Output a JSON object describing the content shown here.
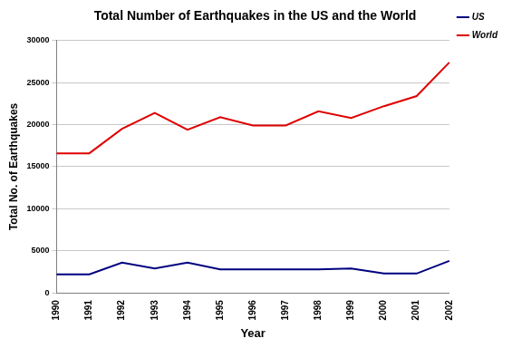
{
  "chart_data": {
    "type": "line",
    "title": "Total Number of Earthquakes in the US and the World",
    "x_label": "Year",
    "y_label": "Total No. of Earthquakes",
    "categories": [
      "1990",
      "1991",
      "1992",
      "1993",
      "1994",
      "1995",
      "1996",
      "1997",
      "1998",
      "1999",
      "2000",
      "2001",
      "2002"
    ],
    "series": [
      {
        "name": "US",
        "color": "#000080",
        "values": [
          2200,
          2200,
          3600,
          2900,
          3600,
          2800,
          2800,
          2800,
          2800,
          2900,
          2300,
          2300,
          3800
        ]
      },
      {
        "name": "World",
        "color": "#e00000",
        "values": [
          16600,
          16600,
          19500,
          21400,
          19400,
          20900,
          19900,
          19900,
          21600,
          20800,
          22200,
          23400,
          27400
        ]
      }
    ],
    "ylim": [
      0,
      30000
    ],
    "yticks": [
      0,
      5000,
      10000,
      15000,
      20000,
      25000,
      30000
    ],
    "grid": true,
    "legend": "right"
  }
}
